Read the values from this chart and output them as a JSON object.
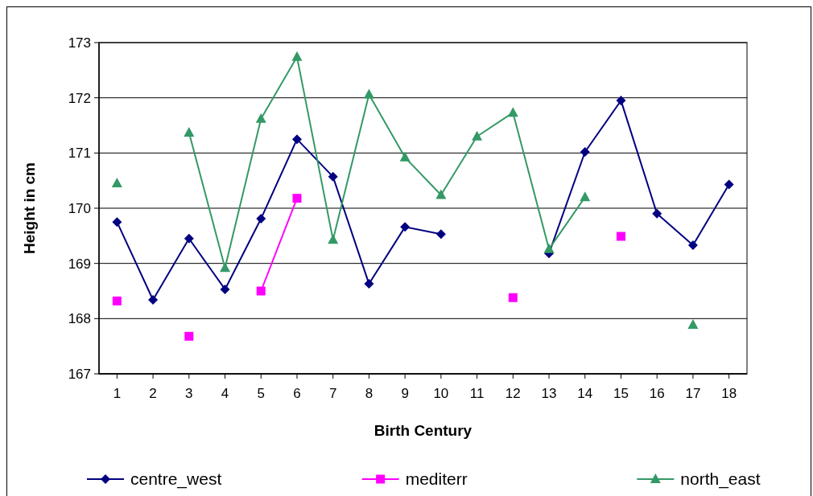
{
  "chart_data": {
    "type": "line",
    "xlabel": "Birth Century",
    "ylabel": "Height in cm",
    "x": [
      1,
      2,
      3,
      4,
      5,
      6,
      7,
      8,
      9,
      10,
      11,
      12,
      13,
      14,
      15,
      16,
      17,
      18
    ],
    "xlim": [
      0.5,
      18.5
    ],
    "xticks": [
      1,
      2,
      3,
      4,
      5,
      6,
      7,
      8,
      9,
      10,
      11,
      12,
      13,
      14,
      15,
      16,
      17,
      18
    ],
    "series": [
      {
        "name": "centre_west",
        "color": "#000080",
        "marker": "diamond",
        "values": [
          169.75,
          168.34,
          169.45,
          168.53,
          169.81,
          171.25,
          170.57,
          168.63,
          169.66,
          169.53,
          null,
          null,
          169.18,
          171.02,
          171.95,
          169.9,
          169.33,
          170.43
        ]
      },
      {
        "name": "mediterr",
        "color": "#ff00ff",
        "marker": "square",
        "values": [
          168.32,
          null,
          167.68,
          null,
          168.5,
          170.18,
          null,
          null,
          null,
          null,
          null,
          168.38,
          null,
          null,
          169.49,
          null,
          null,
          null
        ]
      },
      {
        "name": "north_east",
        "color": "#339966",
        "marker": "triangle",
        "values": [
          170.45,
          null,
          171.37,
          168.92,
          171.62,
          172.74,
          169.43,
          172.06,
          170.92,
          170.24,
          171.3,
          171.73,
          169.26,
          170.2,
          null,
          null,
          167.89,
          null
        ]
      }
    ],
    "ylim": [
      167,
      173
    ],
    "yticks": [
      167,
      168,
      169,
      170,
      171,
      172,
      173
    ],
    "grid": "y",
    "legend": "bottom",
    "line_style": "solid"
  }
}
